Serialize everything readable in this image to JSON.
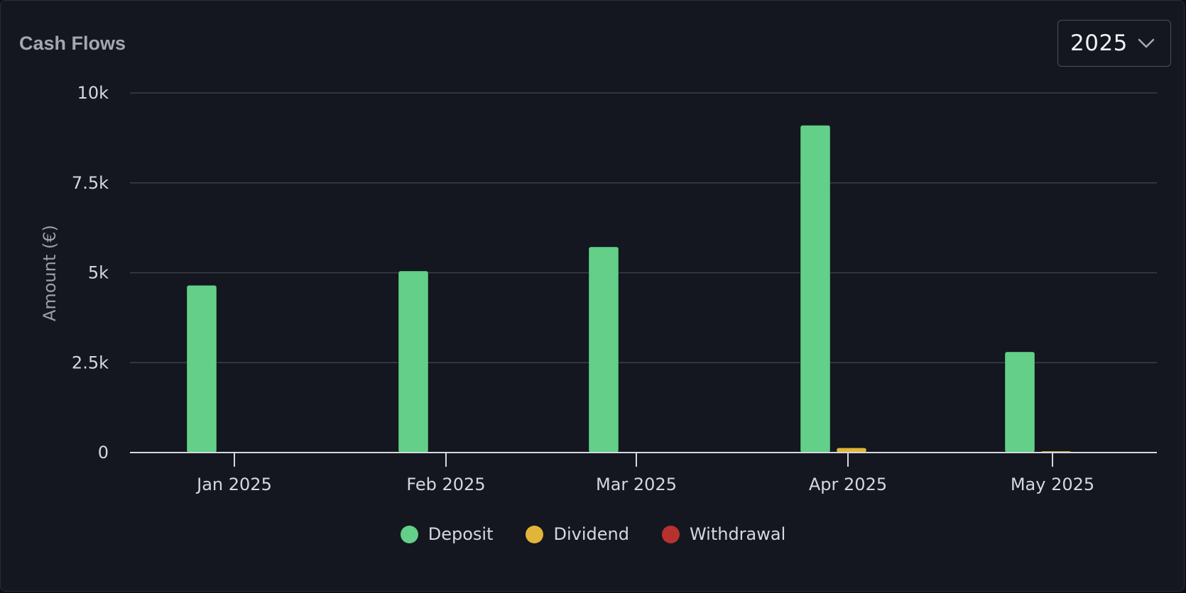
{
  "card": {
    "title": "Cash Flows"
  },
  "year_select": {
    "value": "2025",
    "icon": "chevron-down-icon"
  },
  "colors": {
    "deposit": "#63cf88",
    "dividend": "#e2b53a",
    "withdrawal": "#b7322f",
    "grid": "#3a3f49",
    "axis": "#d6d8de"
  },
  "chart_data": {
    "type": "bar",
    "title": "",
    "xlabel": "",
    "ylabel": "Amount (€)",
    "categories": [
      "Jan 2025",
      "Feb 2025",
      "Mar 2025",
      "Apr 2025",
      "May 2025"
    ],
    "series": [
      {
        "name": "Deposit",
        "color": "#63cf88",
        "values": [
          4650,
          5050,
          5720,
          9100,
          2800
        ]
      },
      {
        "name": "Dividend",
        "color": "#e2b53a",
        "values": [
          0,
          0,
          0,
          130,
          20
        ]
      },
      {
        "name": "Withdrawal",
        "color": "#b7322f",
        "values": [
          0,
          0,
          0,
          0,
          0
        ]
      }
    ],
    "ylim": [
      0,
      10000
    ],
    "yticks": [
      0,
      2500,
      5000,
      7500,
      10000
    ],
    "ytick_labels": [
      "0",
      "2.5k",
      "5k",
      "7.5k",
      "10k"
    ],
    "grid": true,
    "legend_position": "bottom"
  }
}
